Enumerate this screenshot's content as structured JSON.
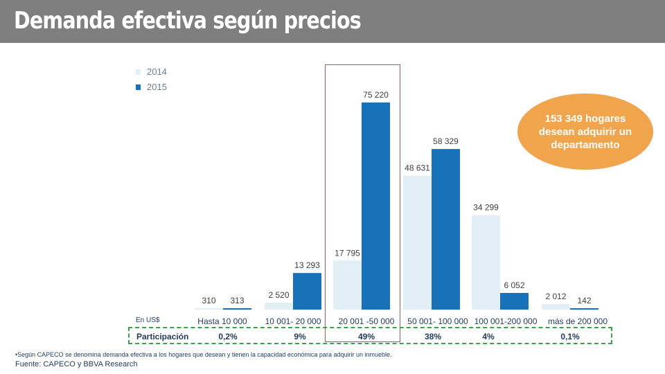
{
  "title": "Demanda efectiva según precios",
  "legend": [
    {
      "label": "2014",
      "color": "#e3eff7"
    },
    {
      "label": "2015",
      "color": "#1772b9"
    }
  ],
  "currency_label": "En US$",
  "participation": {
    "label": "Participación",
    "values": [
      "0,2%",
      "9%",
      "49%",
      "38%",
      "4%",
      "0,1%"
    ]
  },
  "callout": "153 349 hogares desean adquirir un departamento",
  "note": "•Según CAPECO se denomina demanda efectiva a los hogares que desean y tienen la capacidad económica para adquirir un inmueble.",
  "source": "Fuente: CAPECO  y BBVA Research",
  "chart_data": {
    "type": "bar",
    "categories": [
      "Hasta 10 000",
      "10 001- 20 000",
      "20 001 -50 000",
      "50 001- 100 000",
      "100 001-200 000",
      "más de 200 000"
    ],
    "series": [
      {
        "name": "2014",
        "values": [
          310,
          2520,
          17795,
          48631,
          34299,
          2012
        ],
        "labels": [
          "310",
          "2 520",
          "17 795",
          "48 631",
          "34 299",
          "2 012"
        ]
      },
      {
        "name": "2015",
        "values": [
          313,
          13293,
          75220,
          58329,
          6052,
          142
        ],
        "labels": [
          "313",
          "13 293",
          "75 220",
          "58 329",
          "6 052",
          "142"
        ]
      }
    ],
    "ylim": [
      0,
      80000
    ],
    "grid": false,
    "legend_position": "top-left"
  }
}
